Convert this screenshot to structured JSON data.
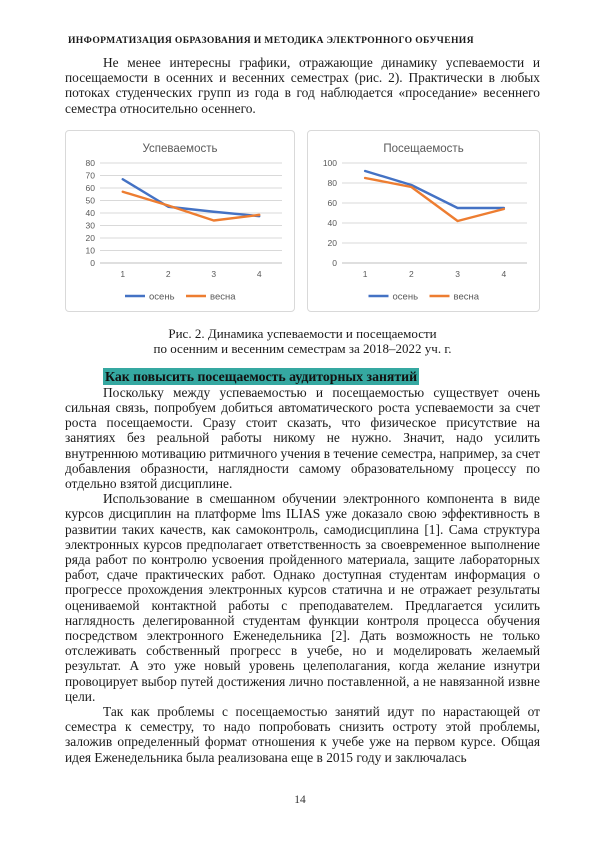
{
  "page": {
    "running_header": "ИНФОРМАТИЗАЦИЯ ОБРАЗОВАНИЯ И МЕТОДИКА ЭЛЕКТРОННОГО ОБУЧЕНИЯ",
    "page_number": "14"
  },
  "article": {
    "paragraph_1": "Не менее интересны графики, отражающие динамику успеваемости и посещаемости в осенних и весенних семестрах (рис. 2). Практически в любых потоках студенческих групп из года в год наблюдается «проседание» весеннего семестра относительно осеннего.",
    "figure_caption_line1": "Рис. 2. Динамика успеваемости и посещаемости",
    "figure_caption_line2": "по осенним и весенним семестрам за 2018–2022 уч. г.",
    "section_heading": "Как повысить посещаемость аудиторных занятий",
    "paragraph_2": "Поскольку между успеваемостью и посещаемостью существует очень сильная связь, попробуем добиться автоматического роста успеваемости за счет роста посещаемости. Сразу стоит сказать, что физическое присутствие на занятиях без реальной работы никому не нужно. Значит, надо усилить внутреннюю мотивацию ритмичного учения в течение семестра, например, за счет добавления образности, наглядности самому образовательному процессу по отдельно взятой дисциплине.",
    "paragraph_3": "Использование в смешанном обучении электронного компонента в виде курсов дисциплин на платформе lms ILIAS уже доказало свою эффективность в развитии таких качеств, как самоконтроль, самодисциплина [1]. Сама структура электронных курсов предполагает ответственность за своевременное выполнение ряда работ по контролю усвоения пройденного материала, защите лабораторных работ, сдаче практических работ. Однако доступная студентам информация о прогрессе прохождения электронных курсов статична и не отражает результаты оцениваемой контактной работы с преподавателем. Предлагается усилить наглядность делегированной студентам функции контроля процесса обучения посредством электронного Еженедельника [2]. Дать возможность не только отслеживать собственный прогресс в учебе, но и моделировать желаемый результат. А это уже новый уровень целеполагания, когда желание изнутри провоцирует выбор путей достижения лично поставленной, а не навязанной извне цели.",
    "paragraph_4": "Так как проблемы с посещаемостью занятий идут по нарастающей от семестра к семестру, то надо попробовать снизить остроту этой проблемы, заложив определенный формат отношения к учебе уже на первом курсе. Общая идея Еженедельника была реализована еще в 2015 году и заключалась"
  },
  "colors": {
    "heading_highlight": "#35a8a1",
    "series_autumn": "#4472C4",
    "series_spring": "#ED7D31",
    "chart_text": "#595959",
    "gridline": "#d9d9d9",
    "axis_line": "#bfbfbf"
  },
  "chart_data": [
    {
      "type": "line",
      "title": "Успеваемость",
      "categories": [
        "1",
        "2",
        "3",
        "4"
      ],
      "series": [
        {
          "name": "осень",
          "color": "#4472C4",
          "values": [
            67,
            45,
            41,
            37.5
          ]
        },
        {
          "name": "весна",
          "color": "#ED7D31",
          "values": [
            57,
            46,
            34,
            38.5
          ]
        }
      ],
      "ylim": [
        0,
        80
      ],
      "y_ticks": [
        0,
        10,
        20,
        30,
        40,
        50,
        60,
        70,
        80
      ],
      "grid": true,
      "legend_position": "bottom"
    },
    {
      "type": "line",
      "title": "Посещаемость",
      "categories": [
        "1",
        "2",
        "3",
        "4"
      ],
      "series": [
        {
          "name": "осень",
          "color": "#4472C4",
          "values": [
            92,
            78,
            55,
            55
          ]
        },
        {
          "name": "весна",
          "color": "#ED7D31",
          "values": [
            85,
            76,
            42,
            54
          ]
        }
      ],
      "ylim": [
        0,
        100
      ],
      "y_ticks": [
        0,
        20,
        40,
        60,
        80,
        100
      ],
      "grid": true,
      "legend_position": "bottom"
    }
  ]
}
